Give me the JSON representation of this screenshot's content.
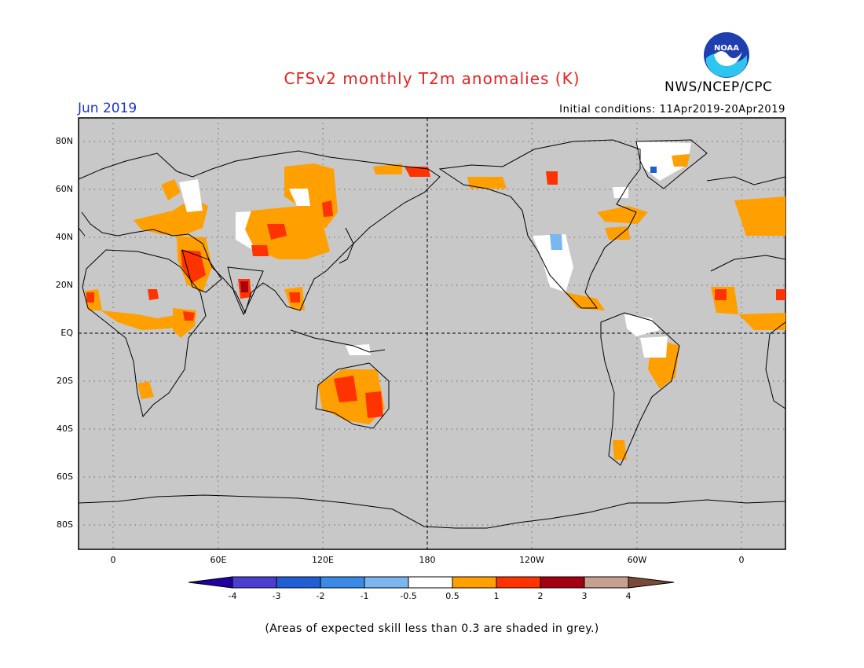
{
  "title": "CFSv2 monthly T2m anomalies (K)",
  "agency": "NWS/NCEP/CPC",
  "logo_text": "NOAA",
  "valid_month": "Jun 2019",
  "initial_conditions": "Initial conditions: 11Apr2019-20Apr2019",
  "footnote": "(Areas of expected skill less than 0.3 are shaded in grey.)",
  "lat_labels": [
    "80N",
    "60N",
    "40N",
    "20N",
    "EQ",
    "20S",
    "40S",
    "60S",
    "80S"
  ],
  "lon_labels": [
    "0",
    "60E",
    "120E",
    "180",
    "120W",
    "60W",
    "0"
  ],
  "colorbar": {
    "labels": [
      "-4",
      "-3",
      "-2",
      "-1",
      "-0.5",
      "0.5",
      "1",
      "2",
      "3",
      "4"
    ],
    "colors": [
      "#2000a0",
      "#4a3fd0",
      "#1f5fd6",
      "#3a8ae8",
      "#7ab6f0",
      "#ffffff",
      "#ff9f00",
      "#ff3300",
      "#a50010",
      "#c8a090",
      "#7a4a38"
    ]
  },
  "colors": {
    "no_skill_grey": "#c8c8c8",
    "warm_weak": "#ff9f00",
    "warm_mid": "#ff3300",
    "warm_strong": "#a50010",
    "cool_weak": "#7ab6f0",
    "near_zero": "#ffffff"
  }
}
